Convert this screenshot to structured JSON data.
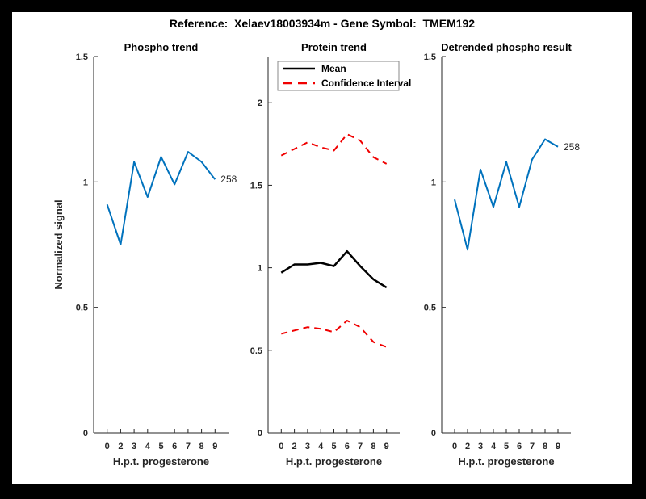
{
  "figure_title": "Reference:  Xelaev18003934m - Gene Symbol:  TMEM192",
  "axes": {
    "ylabel": "Normalized signal",
    "xlabel": "H.p.t. progesterone",
    "x_tick_labels": [
      "0",
      "2",
      "3",
      "4",
      "5",
      "6",
      "7",
      "8",
      "9"
    ]
  },
  "legend": {
    "mean_label": "Mean",
    "ci_label": "Confidence Interval"
  },
  "colors": {
    "line_blue": "#0072BD",
    "ci_red": "#F00000",
    "mean_black": "#000000",
    "axis": "#262626",
    "frame": "#000000",
    "canvas": "#FFFFFF"
  },
  "chart_data": [
    {
      "type": "line",
      "title": "Phospho trend",
      "xlabel": "H.p.t. progesterone",
      "ylabel": "Normalized signal",
      "x_tick_labels": [
        "0",
        "2",
        "3",
        "4",
        "5",
        "6",
        "7",
        "8",
        "9"
      ],
      "ylim": [
        0,
        1.5
      ],
      "yticks": [
        "0",
        "0.5",
        "1",
        "1.5"
      ],
      "grid": false,
      "end_label": "258",
      "series": [
        {
          "name": "phospho",
          "color": "#0072BD",
          "style": "solid",
          "values": [
            0.91,
            0.75,
            1.08,
            0.94,
            1.1,
            0.99,
            1.12,
            1.08,
            1.01
          ]
        }
      ]
    },
    {
      "type": "line",
      "title": "Protein trend",
      "xlabel": "H.p.t. progesterone",
      "x_tick_labels": [
        "0",
        "2",
        "3",
        "4",
        "5",
        "6",
        "7",
        "8",
        "9"
      ],
      "ylim": [
        0,
        2.28
      ],
      "yticks": [
        "0",
        "0.5",
        "1",
        "1.5",
        "2"
      ],
      "grid": false,
      "legend_items": [
        "Mean",
        "Confidence Interval"
      ],
      "legend_position": "northwest",
      "series": [
        {
          "name": "Mean",
          "color": "#000000",
          "style": "solid",
          "values": [
            0.97,
            1.02,
            1.02,
            1.03,
            1.01,
            1.1,
            1.01,
            0.93,
            0.88
          ]
        },
        {
          "name": "Confidence Interval upper",
          "color": "#F00000",
          "style": "dashed",
          "values": [
            1.68,
            1.72,
            1.76,
            1.73,
            1.71,
            1.81,
            1.77,
            1.67,
            1.63
          ]
        },
        {
          "name": "Confidence Interval lower",
          "color": "#F00000",
          "style": "dashed",
          "values": [
            0.6,
            0.62,
            0.64,
            0.63,
            0.61,
            0.68,
            0.64,
            0.55,
            0.52
          ]
        }
      ]
    },
    {
      "type": "line",
      "title": "Detrended phospho result",
      "xlabel": "H.p.t. progesterone",
      "x_tick_labels": [
        "0",
        "2",
        "3",
        "4",
        "5",
        "6",
        "7",
        "8",
        "9"
      ],
      "ylim": [
        0,
        1.5
      ],
      "yticks": [
        "0",
        "0.5",
        "1",
        "1.5"
      ],
      "grid": false,
      "end_label": "258",
      "series": [
        {
          "name": "detrended phospho",
          "color": "#0072BD",
          "style": "solid",
          "values": [
            0.93,
            0.73,
            1.05,
            0.9,
            1.08,
            0.9,
            1.09,
            1.17,
            1.14
          ]
        }
      ]
    }
  ]
}
